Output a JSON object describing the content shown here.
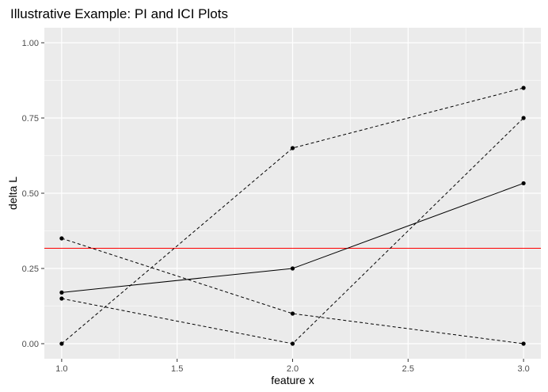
{
  "chart_data": {
    "type": "line",
    "title": "Illustrative Example: PI and ICI Plots",
    "xlabel": "feature x",
    "ylabel": "delta L",
    "xlim": [
      0.925,
      3.075
    ],
    "ylim": [
      -0.05,
      1.05
    ],
    "x_ticks": [
      1.0,
      1.5,
      2.0,
      2.5,
      3.0
    ],
    "x_tick_labels": [
      "1.0",
      "1.5",
      "2.0",
      "2.5",
      "3.0"
    ],
    "y_ticks": [
      0.0,
      0.25,
      0.5,
      0.75,
      1.0
    ],
    "y_tick_labels": [
      "0.00",
      "0.25",
      "0.50",
      "0.75",
      "1.00"
    ],
    "grid": true,
    "legend": "none",
    "panel_background": "#ebebeb",
    "series": [
      {
        "style": "dashed",
        "color": "#000000",
        "x": [
          1,
          2,
          3
        ],
        "y": [
          0.0,
          0.65,
          0.85
        ]
      },
      {
        "style": "dashed",
        "color": "#000000",
        "x": [
          1,
          2,
          3
        ],
        "y": [
          0.35,
          0.1,
          0.0
        ]
      },
      {
        "style": "dashed",
        "color": "#000000",
        "x": [
          1,
          2,
          3
        ],
        "y": [
          0.15,
          0.0,
          0.75
        ]
      },
      {
        "style": "solid",
        "color": "#000000",
        "x": [
          1,
          2,
          3
        ],
        "y": [
          0.17,
          0.25,
          0.533
        ]
      }
    ],
    "hline": {
      "y": 0.317,
      "color": "#ff0000"
    }
  }
}
